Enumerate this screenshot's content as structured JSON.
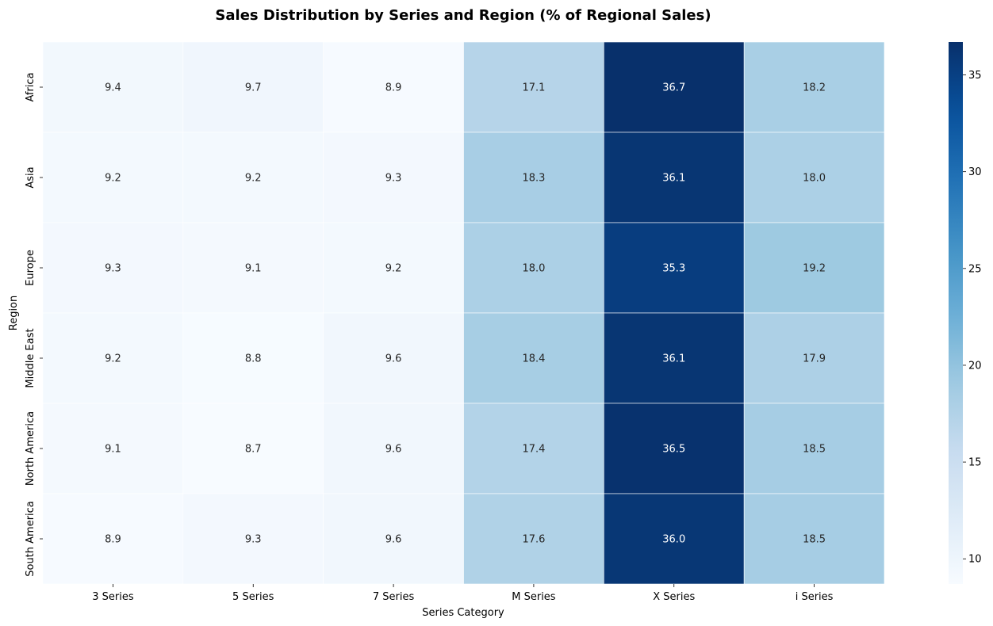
{
  "chart_data": {
    "type": "heatmap",
    "title": "Sales Distribution by Series and Region (% of Regional Sales)",
    "xlabel": "Series Category",
    "ylabel": "Region",
    "x_categories": [
      "3 Series",
      "5 Series",
      "7 Series",
      "M Series",
      "X Series",
      "i Series"
    ],
    "y_categories": [
      "Africa",
      "Asia",
      "Europe",
      "Middle East",
      "North America",
      "South America"
    ],
    "values": [
      [
        9.4,
        9.7,
        8.9,
        17.1,
        36.7,
        18.2
      ],
      [
        9.2,
        9.2,
        9.3,
        18.3,
        36.1,
        18.0
      ],
      [
        9.3,
        9.1,
        9.2,
        18.0,
        35.3,
        19.2
      ],
      [
        9.2,
        8.8,
        9.6,
        18.4,
        36.1,
        17.9
      ],
      [
        9.1,
        8.7,
        9.6,
        17.4,
        36.5,
        18.5
      ],
      [
        8.9,
        9.3,
        9.6,
        17.6,
        36.0,
        18.5
      ]
    ],
    "value_format": "0.1f",
    "colormap": "Blues",
    "colorbar": {
      "vmin": 8.7,
      "vmax": 36.7,
      "ticks": [
        10,
        15,
        20,
        25,
        30,
        35
      ]
    },
    "grid": false
  }
}
